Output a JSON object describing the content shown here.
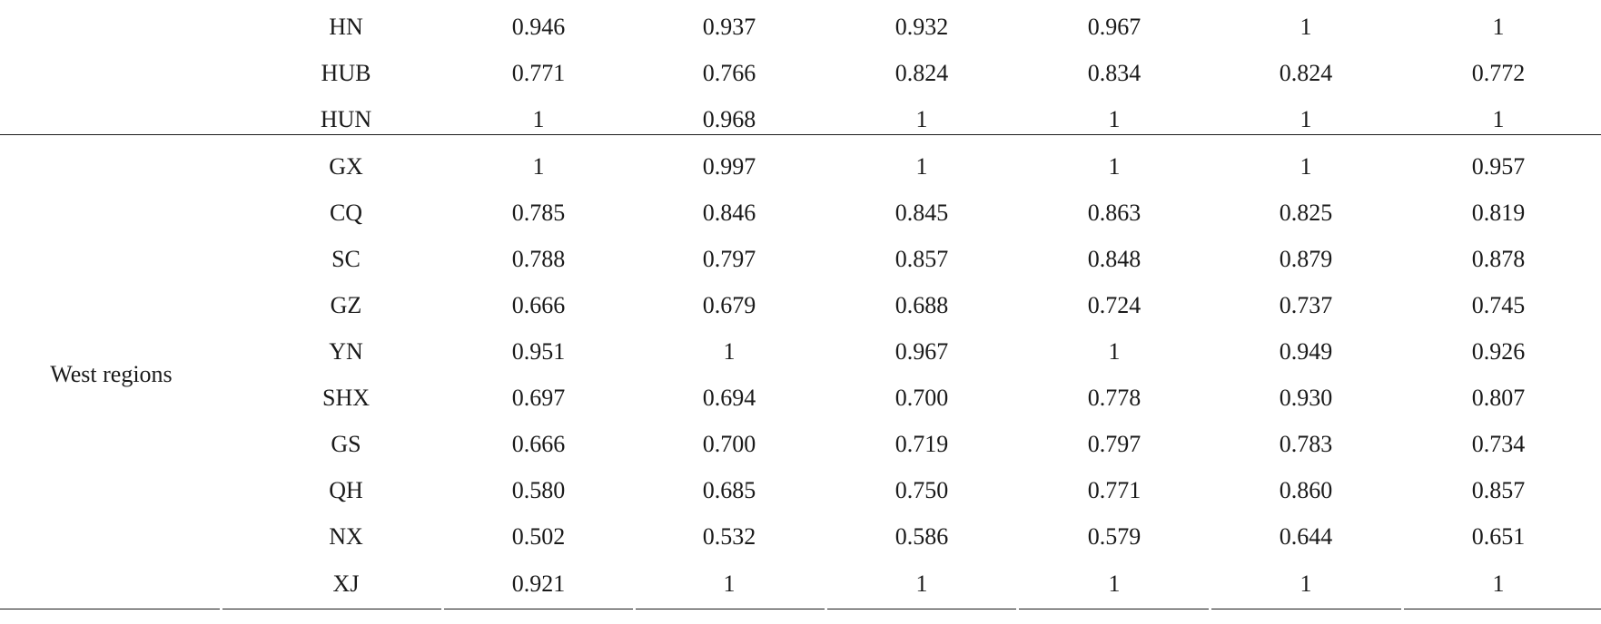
{
  "table": {
    "group_label": "West regions",
    "rows": [
      {
        "region": "HN",
        "values": [
          "0.946",
          "0.937",
          "0.932",
          "0.967",
          "1",
          "1"
        ]
      },
      {
        "region": "HUB",
        "values": [
          "0.771",
          "0.766",
          "0.824",
          "0.834",
          "0.824",
          "0.772"
        ]
      },
      {
        "region": "HUN",
        "values": [
          "1",
          "0.968",
          "1",
          "1",
          "1",
          "1"
        ]
      },
      {
        "region": "GX",
        "values": [
          "1",
          "0.997",
          "1",
          "1",
          "1",
          "0.957"
        ]
      },
      {
        "region": "CQ",
        "values": [
          "0.785",
          "0.846",
          "0.845",
          "0.863",
          "0.825",
          "0.819"
        ]
      },
      {
        "region": "SC",
        "values": [
          "0.788",
          "0.797",
          "0.857",
          "0.848",
          "0.879",
          "0.878"
        ]
      },
      {
        "region": "GZ",
        "values": [
          "0.666",
          "0.679",
          "0.688",
          "0.724",
          "0.737",
          "0.745"
        ]
      },
      {
        "region": "YN",
        "values": [
          "0.951",
          "1",
          "0.967",
          "1",
          "0.949",
          "0.926"
        ]
      },
      {
        "region": "SHX",
        "values": [
          "0.697",
          "0.694",
          "0.700",
          "0.778",
          "0.930",
          "0.807"
        ]
      },
      {
        "region": "GS",
        "values": [
          "0.666",
          "0.700",
          "0.719",
          "0.797",
          "0.783",
          "0.734"
        ]
      },
      {
        "region": "QH",
        "values": [
          "0.580",
          "0.685",
          "0.750",
          "0.771",
          "0.860",
          "0.857"
        ]
      },
      {
        "region": "NX",
        "values": [
          "0.502",
          "0.532",
          "0.586",
          "0.579",
          "0.644",
          "0.651"
        ]
      },
      {
        "region": "XJ",
        "values": [
          "0.921",
          "1",
          "1",
          "1",
          "1",
          "1"
        ]
      }
    ]
  }
}
